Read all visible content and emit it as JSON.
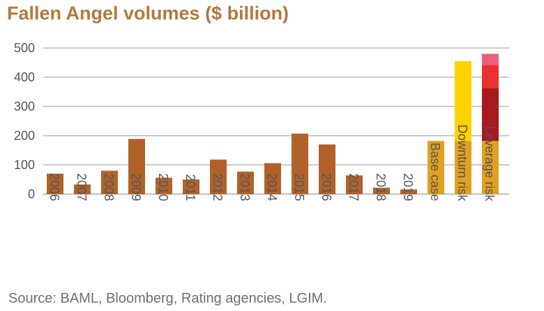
{
  "title": "Fallen Angel volumes ($ billion)",
  "source": "Source: BAML, Bloomberg, Rating agencies, LGIM.",
  "chart_data": {
    "type": "bar",
    "stacked": true,
    "title": "Fallen Angel volumes ($ billion)",
    "xlabel": "",
    "ylabel": "",
    "ylim": [
      0,
      500
    ],
    "yticks": [
      0,
      100,
      200,
      300,
      400,
      500
    ],
    "grid": true,
    "legend": "none",
    "categories": [
      "2006",
      "2007",
      "2008",
      "2009",
      "2010",
      "2011",
      "2012",
      "2013",
      "2014",
      "2015",
      "2016",
      "2017",
      "2018",
      "2019",
      "Base case",
      "Downturn risk",
      "Leverage risk"
    ],
    "bars": [
      {
        "category": "2006",
        "segments": [
          {
            "value": 70,
            "color": "#b0622a"
          }
        ]
      },
      {
        "category": "2007",
        "segments": [
          {
            "value": 33,
            "color": "#b0622a"
          }
        ]
      },
      {
        "category": "2008",
        "segments": [
          {
            "value": 80,
            "color": "#b0622a"
          }
        ]
      },
      {
        "category": "2009",
        "segments": [
          {
            "value": 189,
            "color": "#b0622a"
          }
        ]
      },
      {
        "category": "2010",
        "segments": [
          {
            "value": 56,
            "color": "#b0622a"
          }
        ]
      },
      {
        "category": "2011",
        "segments": [
          {
            "value": 50,
            "color": "#b0622a"
          }
        ]
      },
      {
        "category": "2012",
        "segments": [
          {
            "value": 118,
            "color": "#b0622a"
          }
        ]
      },
      {
        "category": "2013",
        "segments": [
          {
            "value": 77,
            "color": "#b0622a"
          }
        ]
      },
      {
        "category": "2014",
        "segments": [
          {
            "value": 106,
            "color": "#b0622a"
          }
        ]
      },
      {
        "category": "2015",
        "segments": [
          {
            "value": 207,
            "color": "#b0622a"
          }
        ]
      },
      {
        "category": "2016",
        "segments": [
          {
            "value": 170,
            "color": "#b0622a"
          }
        ]
      },
      {
        "category": "2017",
        "segments": [
          {
            "value": 64,
            "color": "#b0622a"
          }
        ]
      },
      {
        "category": "2018",
        "segments": [
          {
            "value": 22,
            "color": "#b0622a"
          }
        ]
      },
      {
        "category": "2019",
        "segments": [
          {
            "value": 16,
            "color": "#b0622a"
          }
        ]
      },
      {
        "category": "Base case",
        "segments": [
          {
            "value": 182,
            "color": "#e0a020"
          }
        ]
      },
      {
        "category": "Downturn risk",
        "segments": [
          {
            "value": 182,
            "color": "#e0a020"
          },
          {
            "value": 273,
            "color": "#ffd200"
          }
        ]
      },
      {
        "category": "Leverage risk",
        "segments": [
          {
            "value": 182,
            "color": "#e0a020"
          },
          {
            "value": 180,
            "color": "#a8181e"
          },
          {
            "value": 80,
            "color": "#e83232"
          },
          {
            "value": 38,
            "color": "#e8607a"
          }
        ]
      }
    ]
  }
}
